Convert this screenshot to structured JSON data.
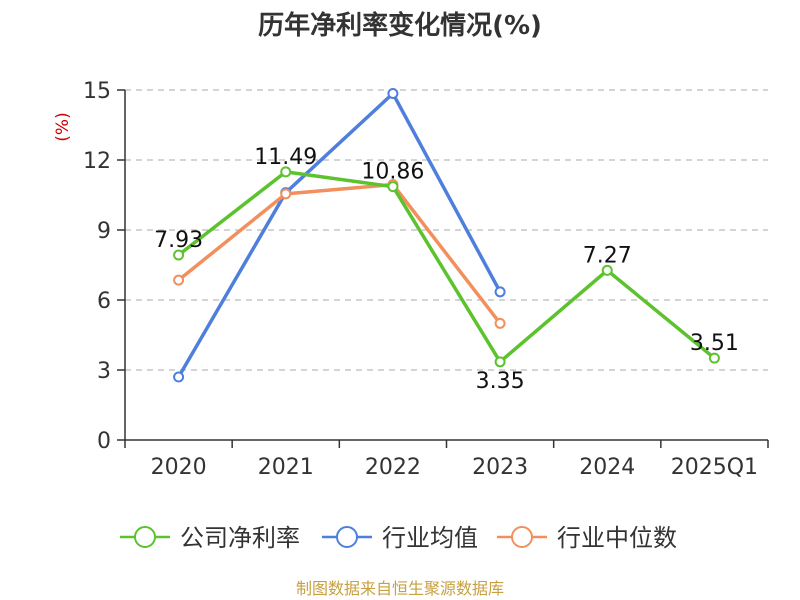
{
  "chart_data": {
    "type": "line",
    "title": "历年净利率变化情况(%)",
    "ylabel": "(%)",
    "categories": [
      "2020",
      "2021",
      "2022",
      "2023",
      "2024",
      "2025Q1"
    ],
    "y_ticks": [
      "0",
      "3",
      "6",
      "9",
      "12",
      "15"
    ],
    "ylim": [
      0,
      15
    ],
    "grid": true,
    "legend_position": "bottom",
    "series": [
      {
        "name": "公司净利率",
        "color": "#5cc22e",
        "values": [
          7.93,
          11.49,
          10.86,
          3.35,
          7.27,
          3.51
        ],
        "labels": [
          "7.93",
          "11.49",
          "10.86",
          "3.35",
          "7.27",
          "3.51"
        ]
      },
      {
        "name": "行业均值",
        "color": "#4f7fdc",
        "values": [
          2.7,
          10.6,
          14.85,
          6.35,
          null,
          null
        ]
      },
      {
        "name": "行业中位数",
        "color": "#f2905d",
        "values": [
          6.85,
          10.55,
          10.95,
          5.0,
          null,
          null
        ]
      }
    ]
  },
  "source": "制图数据来自恒生聚源数据库"
}
